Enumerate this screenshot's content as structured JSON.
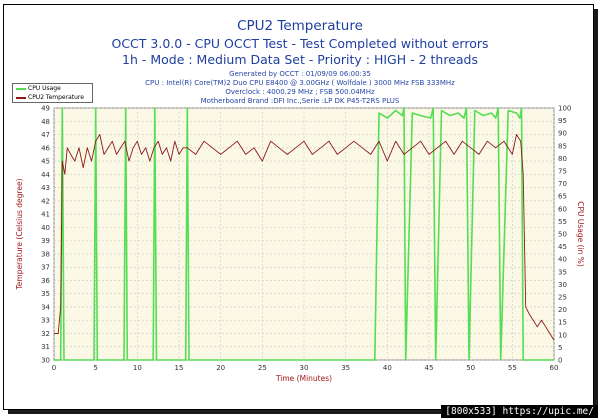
{
  "title": "CPU2 Temperature",
  "subtitle1": "OCCT 3.0.0 - CPU OCCT Test - Test Completed without errors",
  "subtitle2": "1h - Mode : Medium Data Set - Priority : HIGH - 2 threads",
  "info": [
    "Generated by OCCT : 01/09/09 06:00:35",
    "CPU : Intel(R) Core(TM)2 Duo CPU E8400 @ 3.00GHz ( Wolfdale ) 3000 MHz FSB 333MHz",
    "Overclock : 4000.29 MHz ; FSB 500.04MHz",
    "Motherboard Brand :DFI Inc.,Serie :LP DK P45-T2RS PLUS"
  ],
  "watermark": "[800x533] https://upic.me/",
  "colors": {
    "temp": "#8b1a1a",
    "usage": "#55dd55",
    "plot_bg": "#fbf8e6",
    "title": "#1f3fa0",
    "axis_text": "#a01818"
  },
  "chart_data": {
    "type": "line",
    "xlabel": "Time (Minutes)",
    "ylabel_left": "Temperature (Celsius degree)",
    "ylabel_right": "CPU Usage (in %)",
    "xlim": [
      0,
      60
    ],
    "ylim_left": [
      30,
      49
    ],
    "ylim_right": [
      0,
      100
    ],
    "x_ticks": [
      0,
      5,
      10,
      15,
      20,
      25,
      30,
      35,
      40,
      45,
      50,
      55,
      60
    ],
    "y_ticks_left": [
      30,
      31,
      32,
      33,
      34,
      35,
      36,
      37,
      38,
      39,
      40,
      41,
      42,
      43,
      44,
      45,
      46,
      47,
      48,
      49
    ],
    "y_ticks_right": [
      0,
      5,
      10,
      15,
      20,
      25,
      30,
      35,
      40,
      45,
      50,
      55,
      60,
      65,
      70,
      75,
      80,
      85,
      90,
      95,
      100
    ],
    "grid": true,
    "legend_position": "top-left",
    "series": [
      {
        "name": "CPU Usage",
        "axis": "right",
        "x": [
          0,
          0.8,
          1.0,
          1.2,
          4.8,
          5.0,
          5.2,
          8.4,
          8.6,
          8.8,
          11.9,
          12.1,
          12.3,
          15.8,
          16.0,
          16.2,
          38.5,
          39.0,
          40.0,
          41.0,
          41.8,
          42.0,
          42.2,
          43.0,
          44.0,
          45.2,
          45.5,
          45.8,
          46.5,
          47.5,
          48.5,
          49.2,
          49.5,
          49.8,
          50.5,
          51.5,
          52.5,
          53.0,
          53.3,
          53.6,
          54.5,
          55.5,
          55.9,
          56.1,
          56.3,
          60
        ],
        "y": [
          0,
          0,
          100,
          0,
          0,
          100,
          0,
          0,
          100,
          0,
          0,
          100,
          0,
          0,
          100,
          0,
          0,
          98,
          96,
          99,
          97,
          100,
          0,
          98,
          97,
          96,
          100,
          0,
          99,
          97,
          98,
          96,
          100,
          0,
          99,
          97,
          98,
          96,
          100,
          0,
          99,
          98,
          96,
          100,
          0,
          0
        ]
      },
      {
        "name": "CPU2 Temperature",
        "axis": "left",
        "x": [
          0,
          0.5,
          0.8,
          1.0,
          1.3,
          1.6,
          2.0,
          2.5,
          3.0,
          3.5,
          4.0,
          4.5,
          5.0,
          5.5,
          6.0,
          6.5,
          7.0,
          7.5,
          8.0,
          8.5,
          9.0,
          9.5,
          10.0,
          10.5,
          11.0,
          11.5,
          12.0,
          12.5,
          13.0,
          13.5,
          14.0,
          14.5,
          15.0,
          15.5,
          16.0,
          17,
          18,
          19,
          20,
          21,
          22,
          23,
          24,
          25,
          26,
          27,
          28,
          29,
          30,
          31,
          32,
          33,
          34,
          35,
          36,
          37,
          38,
          39,
          40,
          41,
          42,
          43,
          44,
          45,
          46,
          47,
          48,
          49,
          50,
          51,
          52,
          53,
          54,
          55,
          55.5,
          56.0,
          56.3,
          56.6,
          57.0,
          57.5,
          58.0,
          58.5,
          59.0,
          59.5,
          60.0
        ],
        "y": [
          32,
          32,
          34,
          45,
          44,
          46,
          45.5,
          45,
          46,
          44.5,
          46,
          45,
          46.5,
          47,
          45.5,
          46,
          46.5,
          45.5,
          46,
          46.5,
          45,
          46,
          46.5,
          45.5,
          46,
          45,
          46,
          46.5,
          45.5,
          46,
          45,
          46.5,
          45.5,
          46,
          46,
          45.5,
          46.5,
          46,
          45.5,
          46,
          46.5,
          45.5,
          46,
          45,
          46.5,
          46,
          45.5,
          46,
          46.5,
          45.5,
          46,
          46.5,
          45.5,
          46,
          46.5,
          46,
          45.5,
          46.5,
          45,
          46.5,
          45.5,
          46,
          46.5,
          45.5,
          46,
          46.5,
          45.5,
          46.5,
          46,
          45.5,
          46.5,
          46,
          46.5,
          45.5,
          47,
          46.5,
          44,
          34,
          33.5,
          33,
          32.5,
          33,
          32.5,
          32,
          31.5
        ]
      }
    ]
  }
}
